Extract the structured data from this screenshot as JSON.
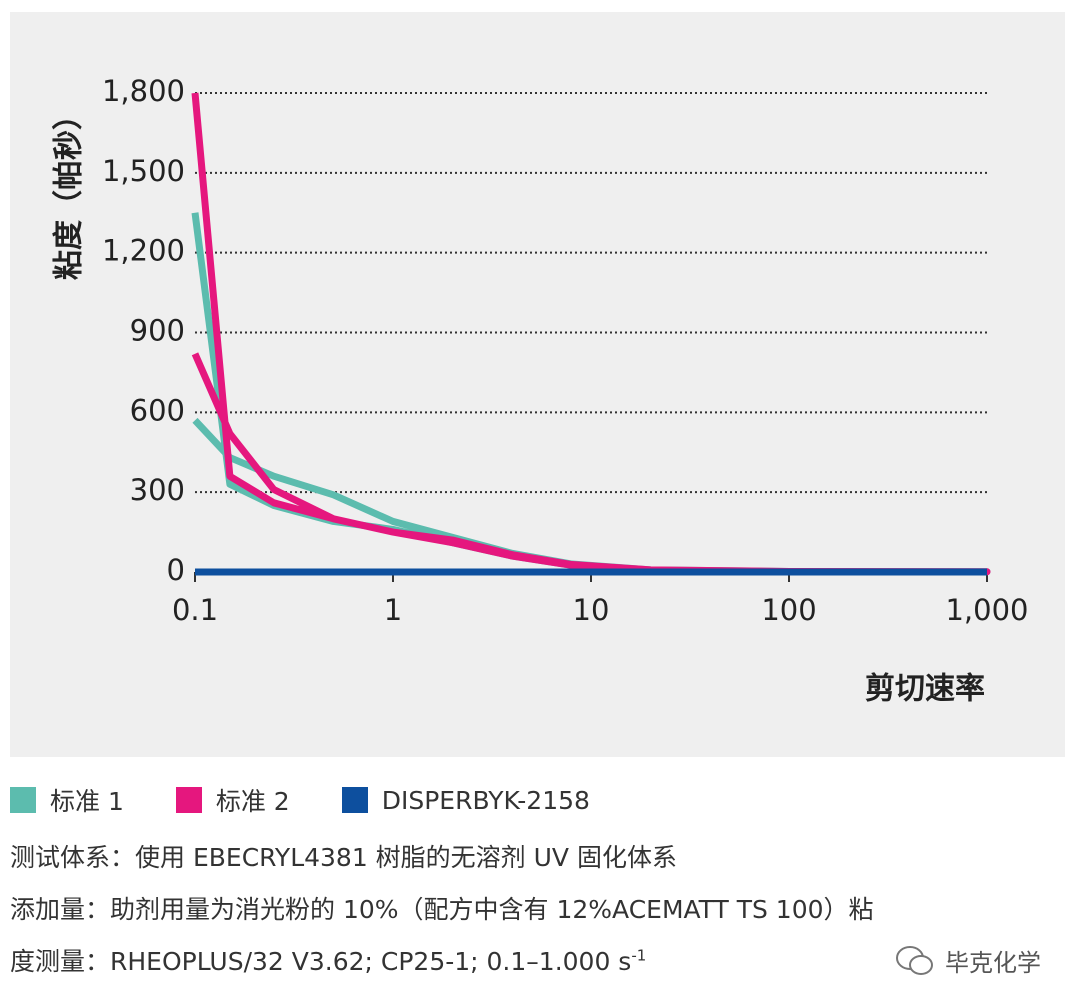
{
  "chart_data": {
    "type": "line",
    "y_label": "粘度（帕秒）",
    "x_label": "剪切速率",
    "xscale": "log",
    "xlim": [
      0.1,
      1000
    ],
    "xticks": [
      0.1,
      1,
      10,
      100,
      {
        "value": 1000,
        "label": "1,000"
      }
    ],
    "ylim": [
      0,
      1800
    ],
    "yticks": [
      0,
      300,
      600,
      900,
      {
        "value": 1200,
        "label": "1,200"
      },
      {
        "value": 1500,
        "label": "1,500"
      },
      {
        "value": 1800,
        "label": "1,800"
      }
    ],
    "grid": true,
    "series": [
      {
        "name": "标准 1",
        "color": "#5cbcae",
        "x": [
          0.1,
          0.15,
          0.25,
          0.5,
          1,
          2,
          4,
          8,
          20,
          100,
          1000,
          100,
          20,
          8,
          4,
          2,
          1,
          0.5,
          0.25,
          0.15,
          0.1
        ],
        "values": [
          1350,
          330,
          250,
          190,
          160,
          110,
          60,
          25,
          8,
          2,
          1,
          2,
          8,
          30,
          70,
          130,
          190,
          290,
          360,
          430,
          570
        ]
      },
      {
        "name": "标准 2",
        "color": "#e5177e",
        "x": [
          0.1,
          0.15,
          0.25,
          0.5,
          1,
          2,
          4,
          8,
          20,
          100,
          1000,
          100,
          20,
          8,
          4,
          2,
          1,
          0.5,
          0.25,
          0.15,
          0.1
        ],
        "values": [
          1800,
          360,
          260,
          200,
          150,
          110,
          60,
          25,
          8,
          2,
          1,
          2,
          8,
          28,
          65,
          120,
          150,
          200,
          310,
          520,
          820
        ]
      },
      {
        "name": "DISPERBYK-2158",
        "color": "#0d4f9e",
        "x": [
          0.1,
          1000
        ],
        "values": [
          0,
          0
        ]
      }
    ]
  },
  "notes": [
    "测试体系：使用 EBECRYL4381 树脂的无溶剂 UV 固化体系",
    "添加量：助剂用量为消光粉的 10%（配方中含有 12%ACEMATT TS 100）粘",
    "度测量：RHEOPLUS/32 V3.62; CP25-1; 0.1–1.000 s"
  ],
  "notes_superscript": "-1",
  "watermark": "毕克化学"
}
